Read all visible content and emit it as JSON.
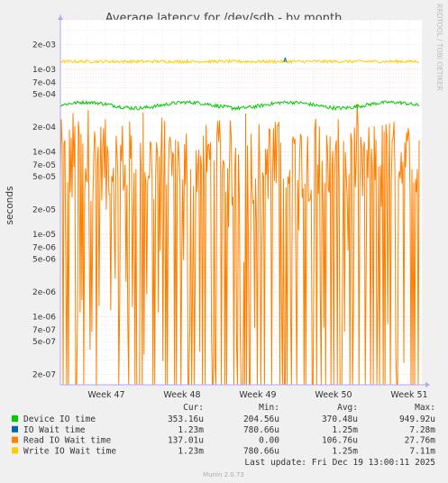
{
  "chart_data": {
    "type": "line",
    "title": "Average latency for /dev/sdb - by month",
    "ylabel": "seconds",
    "yscale": "log",
    "ylim": [
      1.5e-07,
      0.004
    ],
    "yticks": [
      "2e-03",
      "1e-03",
      "7e-04",
      "5e-04",
      "2e-04",
      "1e-04",
      "7e-05",
      "5e-05",
      "2e-05",
      "1e-05",
      "7e-06",
      "5e-06",
      "2e-06",
      "1e-06",
      "7e-07",
      "5e-07",
      "2e-07"
    ],
    "xticks": [
      "Week 47",
      "Week 48",
      "Week 49",
      "Week 50",
      "Week 51"
    ],
    "grid": true,
    "series": [
      {
        "name": "Device IO time",
        "color": "#00cc00",
        "level": 0.00037,
        "spread": 0.05
      },
      {
        "name": "IO Wait time",
        "color": "#0066b3",
        "level": 0.00125,
        "spread": 0.03
      },
      {
        "name": "Read IO Wait time",
        "color": "#ff8000",
        "level": 0.0001,
        "spread": 1.0
      },
      {
        "name": "Write IO Wait time",
        "color": "#ffcc00",
        "level": 0.00125,
        "spread": 0.04
      }
    ],
    "legend": {
      "headers": [
        "Cur:",
        "Min:",
        "Avg:",
        "Max:"
      ],
      "rows": [
        {
          "name": "Device IO time",
          "color": "#00cc00",
          "cur": "353.16u",
          "min": "204.56u",
          "avg": "370.48u",
          "max": "949.92u"
        },
        {
          "name": "IO Wait time",
          "color": "#0066b3",
          "cur": "1.23m",
          "min": "780.66u",
          "avg": "1.25m",
          "max": "7.28m"
        },
        {
          "name": "Read IO Wait time",
          "color": "#ff8000",
          "cur": "137.01u",
          "min": "0.00",
          "avg": "106.76u",
          "max": "27.76m"
        },
        {
          "name": "Write IO Wait time",
          "color": "#ffcc00",
          "cur": "1.23m",
          "min": "780.66u",
          "avg": "1.25m",
          "max": "7.11m"
        }
      ]
    },
    "last_update": "Last update: Fri Dec 19 13:00:11 2025",
    "side_label": "RRDTOOL / TOBI OETIKER",
    "footer": "Munin 2.0.73"
  }
}
